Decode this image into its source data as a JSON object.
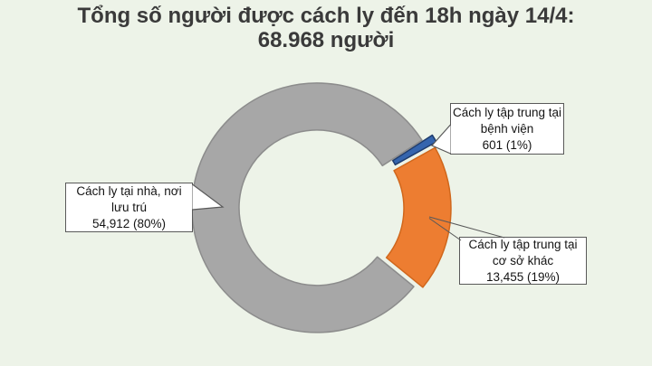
{
  "title": {
    "line1": "Tổng số người được cách ly đến 18h ngày 14/4:",
    "line2": "68.968 người"
  },
  "chart_data": {
    "type": "pie",
    "subtype": "doughnut",
    "title": "Tổng số người được cách ly đến 18h ngày 14/4: 68.968 người",
    "total": 68968,
    "total_label": "68.968 người",
    "legend": "none",
    "start_angle_deg": 57.2,
    "slices": [
      {
        "id": "hospital",
        "label": "Cách ly tập trung tại bệnh viện",
        "value": 601,
        "pct": 1,
        "display": "601  (1%)",
        "color": "#3565ae",
        "border": "#1f3c6d",
        "explode": 11
      },
      {
        "id": "other",
        "label": "Cách ly tập trung tại cơ sở khác",
        "value": 13455,
        "pct": 19,
        "display": "13,455  (19%)",
        "color": "#ed7d31",
        "border": "#d0671c",
        "explode": 8
      },
      {
        "id": "home",
        "label": "Cách ly tại nhà, nơi lưu trú",
        "value": 54912,
        "pct": 80,
        "display": "54,912  (80%)",
        "color": "#a7a7a7",
        "border": "#8c8c8c",
        "explode": 2
      }
    ]
  },
  "callouts": {
    "hospital": {
      "line1": "Cách ly tập trung tại",
      "line2": "bệnh viện",
      "line3": "601  (1%)"
    },
    "home": {
      "line1": "Cách ly tại nhà, nơi",
      "line2": "lưu trú",
      "line3": "54,912  (80%)"
    },
    "other": {
      "line1": "Cách ly tập trung tại",
      "line2": "cơ sở khác",
      "line3": "13,455  (19%)"
    }
  },
  "colors": {
    "background": "#edf3e8",
    "title_text": "#3a3a3a",
    "callout_border": "#595959",
    "callout_bg": "#ffffff"
  }
}
